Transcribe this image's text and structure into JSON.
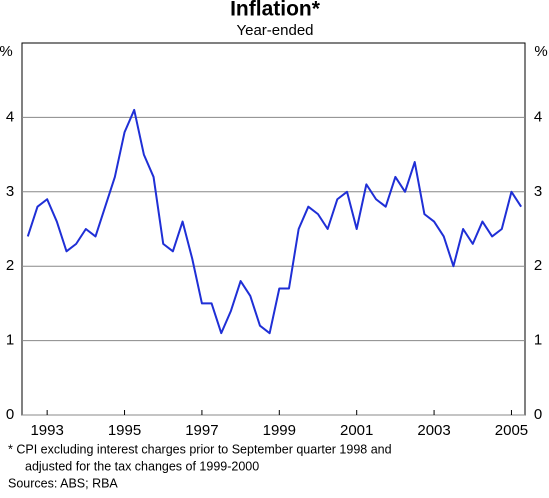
{
  "chart_data": {
    "type": "line",
    "title": "Inflation*",
    "subtitle": "Year-ended",
    "y_unit": "%",
    "x": [
      1993.0,
      1993.25,
      1993.5,
      1993.75,
      1994.0,
      1994.25,
      1994.5,
      1994.75,
      1995.0,
      1995.25,
      1995.5,
      1995.75,
      1996.0,
      1996.25,
      1996.5,
      1996.75,
      1997.0,
      1997.25,
      1997.5,
      1997.75,
      1998.0,
      1998.25,
      1998.5,
      1998.75,
      1999.0,
      1999.25,
      1999.5,
      1999.75,
      2000.0,
      2000.25,
      2000.5,
      2000.75,
      2001.0,
      2001.25,
      2001.5,
      2001.75,
      2002.0,
      2002.25,
      2002.5,
      2002.75,
      2003.0,
      2003.25,
      2003.5,
      2003.75,
      2004.0,
      2004.25,
      2004.5,
      2004.75,
      2005.0,
      2005.25,
      2005.5,
      2005.75
    ],
    "series": [
      {
        "name": "Inflation",
        "color": "#1f2fd6",
        "values": [
          2.4,
          2.8,
          2.9,
          2.6,
          2.2,
          2.3,
          2.5,
          2.4,
          2.8,
          3.2,
          3.8,
          4.1,
          3.5,
          3.2,
          2.3,
          2.2,
          2.6,
          2.1,
          1.5,
          1.5,
          1.1,
          1.4,
          1.8,
          1.6,
          1.2,
          1.1,
          1.7,
          1.7,
          2.5,
          2.8,
          2.7,
          2.5,
          2.9,
          3.0,
          2.5,
          3.1,
          2.9,
          2.8,
          3.2,
          3.0,
          3.4,
          2.7,
          2.6,
          2.4,
          2.0,
          2.5,
          2.3,
          2.6,
          2.4,
          2.5,
          3.0,
          2.8
        ]
      }
    ],
    "xlim": [
      1992.85,
      2005.85
    ],
    "xticks": [
      {
        "value": 1993.5,
        "label": "1993"
      },
      {
        "value": 1995.5,
        "label": "1995"
      },
      {
        "value": 1997.5,
        "label": "1997"
      },
      {
        "value": 1999.5,
        "label": "1999"
      },
      {
        "value": 2001.5,
        "label": "2001"
      },
      {
        "value": 2003.5,
        "label": "2003"
      },
      {
        "value": 2005.5,
        "label": "2005"
      }
    ],
    "ylim": [
      0,
      5
    ],
    "yticks": [
      0,
      1,
      2,
      3,
      4
    ],
    "grid": true,
    "footnotes": [
      "*   CPI excluding interest charges prior to September quarter 1998 and",
      "adjusted for the tax changes of 1999-2000",
      "Sources: ABS; RBA"
    ]
  }
}
